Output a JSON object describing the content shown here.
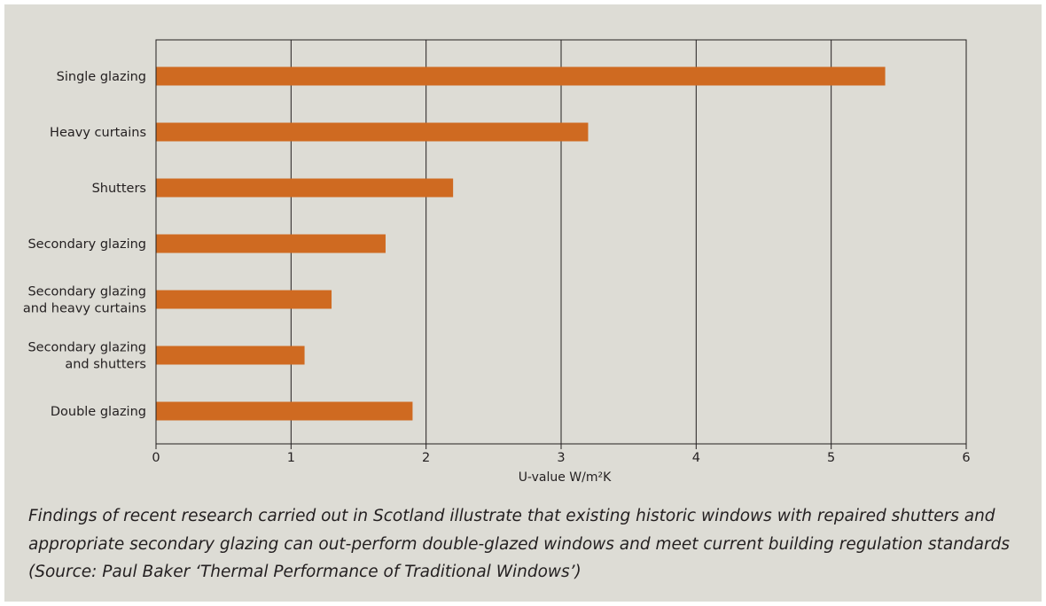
{
  "colors": {
    "panel_background": "#dddcd5",
    "bar": "#cf6a21",
    "axis": "#231f20",
    "text": "#231f20"
  },
  "chart_data": {
    "type": "bar",
    "orientation": "horizontal",
    "categories": [
      [
        "Single glazing"
      ],
      [
        "Heavy curtains"
      ],
      [
        "Shutters"
      ],
      [
        "Secondary glazing"
      ],
      [
        "Secondary glazing",
        "and heavy curtains"
      ],
      [
        "Secondary glazing",
        "and shutters"
      ],
      [
        "Double glazing"
      ]
    ],
    "values": [
      5.4,
      3.2,
      2.2,
      1.7,
      1.3,
      1.1,
      1.9
    ],
    "xlabel": "U-value W/m²K",
    "xlim": [
      0,
      6
    ],
    "xticks": [
      0,
      1,
      2,
      3,
      4,
      5,
      6
    ],
    "grid": "vertical gridlines at each integer",
    "legend": "none"
  },
  "caption": "Findings of recent research carried out in Scotland illustrate that existing historic windows with repaired shutters and appropriate secondary glazing can out-perform double-glazed windows and meet current building regulation standards (Source: Paul Baker ‘Thermal Performance of Traditional Windows’)"
}
